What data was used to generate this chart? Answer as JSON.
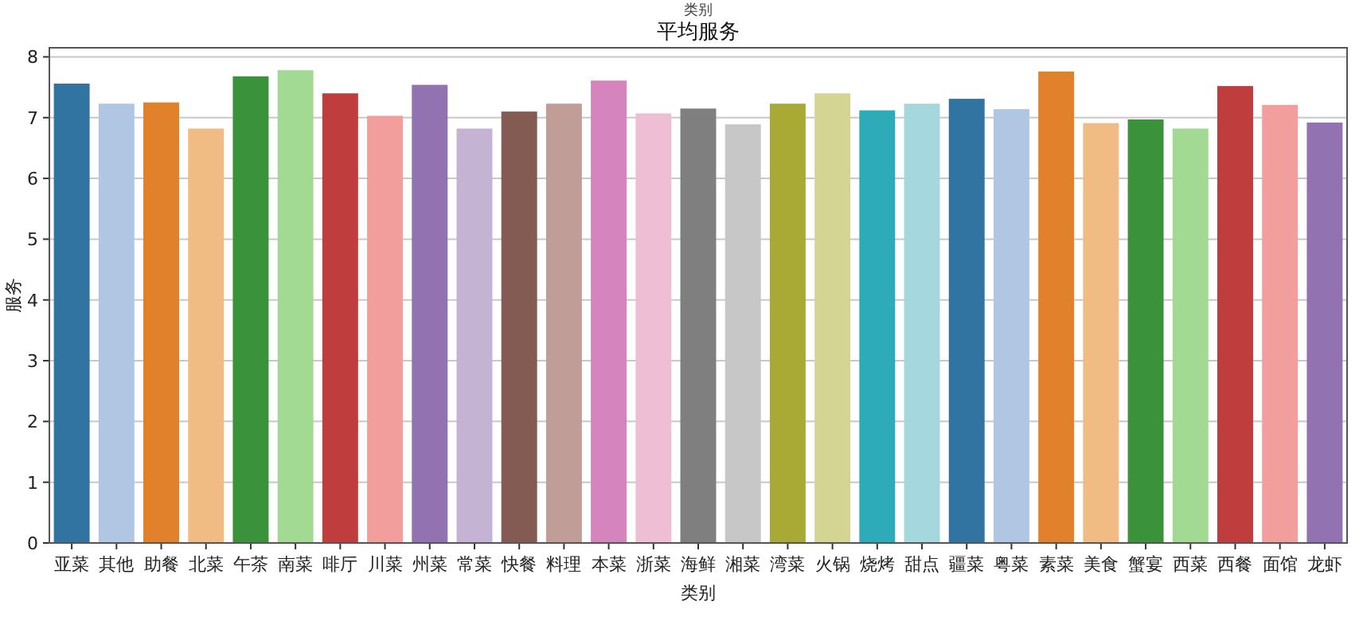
{
  "chart_data": {
    "type": "bar",
    "title": "平均服务",
    "xlabel": "类别",
    "ylabel": "服务",
    "annotations": [
      "类别"
    ],
    "categories": [
      "亚菜",
      "其他",
      "助餐",
      "北菜",
      "午茶",
      "南菜",
      "啡厅",
      "川菜",
      "州菜",
      "常菜",
      "快餐",
      "料理",
      "本菜",
      "浙菜",
      "海鲜",
      "湘菜",
      "湾菜",
      "火锅",
      "烧烤",
      "甜点",
      "疆菜",
      "粤菜",
      "素菜",
      "美食",
      "蟹宴",
      "西菜",
      "西餐",
      "面馆",
      "龙虾"
    ],
    "values": [
      7.56,
      7.23,
      7.25,
      6.82,
      7.68,
      7.78,
      7.4,
      7.03,
      7.54,
      6.82,
      7.1,
      7.23,
      7.61,
      7.07,
      7.15,
      6.89,
      7.23,
      7.4,
      7.12,
      7.23,
      7.31,
      7.14,
      7.76,
      6.91,
      6.97,
      6.82,
      7.52,
      7.21,
      6.92
    ],
    "colors": [
      "#3274a1",
      "#b1c6e2",
      "#e1812c",
      "#f1bb84",
      "#3a923a",
      "#a2d993",
      "#c03d3e",
      "#f29e9c",
      "#9372b2",
      "#c5b3d3",
      "#845b53",
      "#c09e97",
      "#d684bd",
      "#eebed5",
      "#7f7f7f",
      "#c7c7c7",
      "#a9aa35",
      "#d5d593",
      "#2eabb8",
      "#a5d7df",
      "#3274a1",
      "#b1c6e2",
      "#e1812c",
      "#f1bb84",
      "#3a923a",
      "#a2d993",
      "#c03d3e",
      "#f29e9c",
      "#9372b2"
    ],
    "ylim": [
      0,
      8.15
    ],
    "yticks": [
      0,
      1,
      2,
      3,
      4,
      5,
      6,
      7,
      8
    ],
    "grid": "y"
  }
}
